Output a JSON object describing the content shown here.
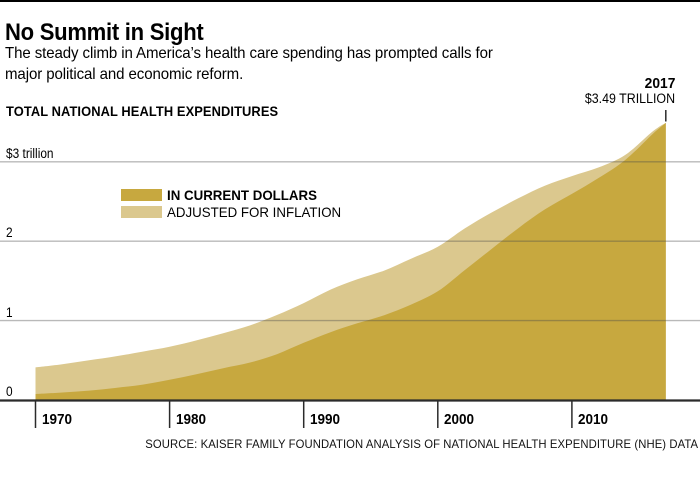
{
  "header": {
    "title": "No Summit in Sight",
    "subtitle_line1": "The steady climb in America’s health care spending has prompted calls for",
    "subtitle_line2": "major political and economic reform."
  },
  "annotation": {
    "year": "2017",
    "value": "$3.49 TRILLION"
  },
  "source": "SOURCE: KAISER FAMILY FOUNDATION ANALYSIS OF NATIONAL HEALTH EXPENDITURE (NHE) DATA",
  "colors": {
    "current_dollars": "#C7A83F",
    "adjusted_inflation": "#DBC88E",
    "axis": "#2b2b2b",
    "gridline": "rgba(70,70,70,0.38)",
    "top_rule": "#000000",
    "background": "#ffffff"
  },
  "chart_data": {
    "type": "area",
    "title": "TOTAL NATIONAL HEALTH EXPENDITURES",
    "y_unit": "trillions of dollars",
    "xlim": [
      1970,
      2017
    ],
    "ylim": [
      0,
      3.55
    ],
    "grid": "horizontal",
    "legend_position": "inside-upper-left",
    "x_ticks": [
      1970,
      1980,
      1990,
      2000,
      2010
    ],
    "y_ticks": [
      {
        "label": "$3 trillion",
        "value": 3
      },
      {
        "label": "2",
        "value": 2
      },
      {
        "label": "1",
        "value": 1
      },
      {
        "label": "0",
        "value": 0
      }
    ],
    "x": [
      1970,
      1972,
      1974,
      1976,
      1978,
      1980,
      1982,
      1984,
      1986,
      1988,
      1990,
      1992,
      1994,
      1996,
      1998,
      2000,
      2002,
      2004,
      2006,
      2008,
      2010,
      2012,
      2014,
      2016,
      2017
    ],
    "series": [
      {
        "name": "IN CURRENT DOLLARS",
        "color": "#C7A83F",
        "values": [
          0.075,
          0.094,
          0.118,
          0.152,
          0.194,
          0.255,
          0.325,
          0.401,
          0.472,
          0.577,
          0.721,
          0.854,
          0.966,
          1.068,
          1.202,
          1.369,
          1.635,
          1.901,
          2.164,
          2.402,
          2.596,
          2.797,
          3.026,
          3.347,
          3.49
        ]
      },
      {
        "name": "ADJUSTED FOR INFLATION",
        "color": "#DBC88E",
        "values": [
          0.41,
          0.45,
          0.5,
          0.55,
          0.61,
          0.67,
          0.75,
          0.84,
          0.94,
          1.07,
          1.22,
          1.39,
          1.52,
          1.63,
          1.78,
          1.93,
          2.16,
          2.36,
          2.54,
          2.7,
          2.82,
          2.93,
          3.09,
          3.38,
          3.49
        ]
      }
    ],
    "annotation_point": {
      "year": 2017,
      "value_trillions": 3.49
    }
  }
}
